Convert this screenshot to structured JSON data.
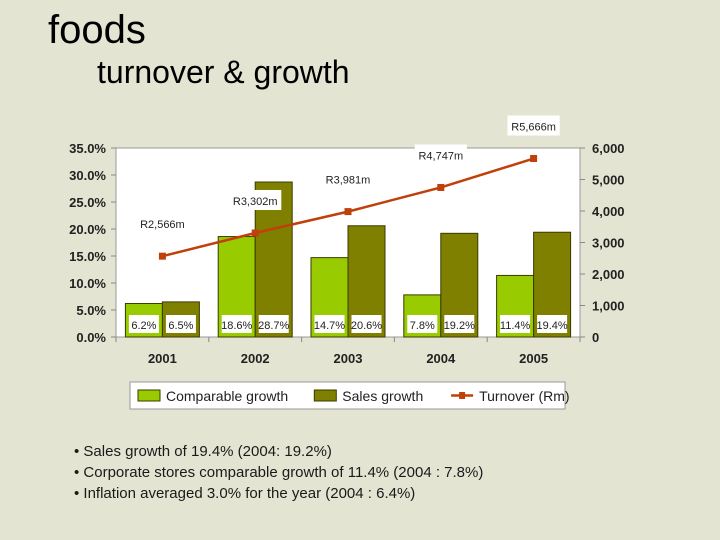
{
  "slide": {
    "title": "foods",
    "subtitle": "turnover & growth",
    "bullets": [
      "• Sales growth of 19.4% (2004: 19.2%)",
      "• Corporate stores comparable growth of 11.4% (2004 : 7.8%)",
      "• Inflation averaged 3.0% for the year (2004 : 6.4%)"
    ]
  },
  "chart_data": {
    "type": "bar",
    "categories": [
      "2001",
      "2002",
      "2003",
      "2004",
      "2005"
    ],
    "series": [
      {
        "name": "Comparable growth",
        "type": "bar",
        "axis": "left",
        "color": "#99cc00",
        "values": [
          6.2,
          18.6,
          14.7,
          7.8,
          11.4
        ],
        "labels": [
          "6.2%",
          "18.6%",
          "14.7%",
          "7.8%",
          "11.4%"
        ]
      },
      {
        "name": "Sales growth",
        "type": "bar",
        "axis": "left",
        "color": "#808000",
        "values": [
          6.5,
          28.7,
          20.6,
          19.2,
          19.4
        ],
        "labels": [
          "6.5%",
          "28.7%",
          "20.6%",
          "19.2%",
          "19.4%"
        ]
      },
      {
        "name": "Turnover (Rm)",
        "type": "line",
        "axis": "right",
        "color": "#c0400a",
        "values": [
          2566,
          3302,
          3981,
          4747,
          5666
        ],
        "labels": [
          "R2,566m",
          "R3,302m",
          "R3,981m",
          "R4,747m",
          "R5,666m"
        ]
      }
    ],
    "y_left": {
      "ylim": [
        0,
        35
      ],
      "ticks": [
        "0.0%",
        "5.0%",
        "10.0%",
        "15.0%",
        "20.0%",
        "25.0%",
        "30.0%",
        "35.0%"
      ]
    },
    "y_right": {
      "ylim": [
        0,
        6000
      ],
      "ticks": [
        "0",
        "1,000",
        "2,000",
        "3,000",
        "4,000",
        "5,000",
        "6,000"
      ]
    },
    "legend": "bottom",
    "grid": false,
    "plot_background": "#ffffff"
  }
}
